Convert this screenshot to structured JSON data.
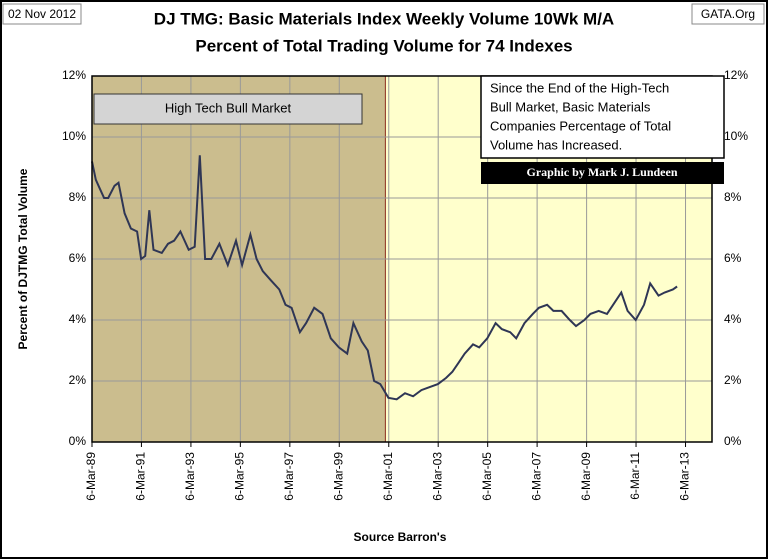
{
  "chart_data": {
    "type": "line",
    "header_left": "02 Nov 2012",
    "header_right": "GATA.Org",
    "title": "DJ TMG: Basic Materials Index Weekly Volume 10Wk M/A",
    "subtitle": "Percent of Total Trading Volume for 74 Indexes",
    "y_label": "Percent of DJTMG Total Volume",
    "x_label": "Source Barron's",
    "notes": [
      "Since the End of the High-Tech",
      "Bull Market, Basic Materials",
      "Companies Percentage of Total",
      "Volume has Increased."
    ],
    "credit": "Graphic by Mark J. Lundeen",
    "shade": {
      "from": "1989-03-06",
      "to": "2001-01-15",
      "label": "High Tech Bull Market",
      "color": "#cbbd8e"
    },
    "background": "#ffffcc",
    "grid": true,
    "xlim": [
      "1989-03-06",
      "2014-04-01"
    ],
    "xticks": [
      {
        "value": "1989-03-06",
        "label": "6-Mar-89"
      },
      {
        "value": "1991-03-06",
        "label": "6-Mar-91"
      },
      {
        "value": "1993-03-06",
        "label": "6-Mar-93"
      },
      {
        "value": "1995-03-06",
        "label": "6-Mar-95"
      },
      {
        "value": "1997-03-06",
        "label": "6-Mar-97"
      },
      {
        "value": "1999-03-06",
        "label": "6-Mar-99"
      },
      {
        "value": "2001-03-06",
        "label": "6-Mar-01"
      },
      {
        "value": "2003-03-06",
        "label": "6-Mar-03"
      },
      {
        "value": "2005-03-06",
        "label": "6-Mar-05"
      },
      {
        "value": "2007-03-06",
        "label": "6-Mar-07"
      },
      {
        "value": "2009-03-06",
        "label": "6-Mar-09"
      },
      {
        "value": "2011-03-06",
        "label": "6-Mar-11"
      },
      {
        "value": "2013-03-06",
        "label": "6-Mar-13"
      }
    ],
    "ylim": [
      0,
      12
    ],
    "yticks": [
      {
        "value": 0,
        "label": "0%"
      },
      {
        "value": 2,
        "label": "2%"
      },
      {
        "value": 4,
        "label": "4%"
      },
      {
        "value": 6,
        "label": "6%"
      },
      {
        "value": 8,
        "label": "8%"
      },
      {
        "value": 10,
        "label": "10%"
      },
      {
        "value": 12,
        "label": "12%"
      }
    ],
    "x": [
      "1989-03-06",
      "1989-05-01",
      "1989-07-01",
      "1989-09-01",
      "1989-11-01",
      "1990-02-01",
      "1990-04-01",
      "1990-07-01",
      "1990-10-01",
      "1991-01-01",
      "1991-03-01",
      "1991-05-01",
      "1991-07-01",
      "1991-09-01",
      "1992-01-01",
      "1992-04-01",
      "1992-07-01",
      "1992-10-01",
      "1993-02-01",
      "1993-05-01",
      "1993-07-15",
      "1993-10-01",
      "1994-01-01",
      "1994-05-01",
      "1994-09-01",
      "1995-01-01",
      "1995-04-01",
      "1995-08-01",
      "1995-11-01",
      "1996-02-01",
      "1996-06-01",
      "1996-10-01",
      "1997-01-01",
      "1997-04-01",
      "1997-08-01",
      "1997-11-01",
      "1998-03-01",
      "1998-07-01",
      "1998-11-01",
      "1999-03-01",
      "1999-07-01",
      "1999-10-01",
      "2000-02-01",
      "2000-05-01",
      "2000-08-01",
      "2000-11-01",
      "2001-03-01",
      "2001-07-01",
      "2001-11-01",
      "2002-03-01",
      "2002-07-01",
      "2002-11-01",
      "2003-03-01",
      "2003-07-01",
      "2003-10-01",
      "2004-01-01",
      "2004-04-01",
      "2004-08-01",
      "2004-11-01",
      "2005-03-01",
      "2005-07-01",
      "2005-10-01",
      "2006-02-01",
      "2006-05-01",
      "2006-09-01",
      "2007-01-01",
      "2007-04-01",
      "2007-08-01",
      "2007-11-01",
      "2008-03-01",
      "2008-07-01",
      "2008-10-01",
      "2009-02-01",
      "2009-05-01",
      "2009-09-01",
      "2010-01-01",
      "2010-04-01",
      "2010-08-01",
      "2010-11-01",
      "2011-03-01",
      "2011-07-01",
      "2011-10-01",
      "2012-02-01",
      "2012-05-01",
      "2012-09-01",
      "2012-11-01"
    ],
    "series": [
      {
        "color": "#2f3655",
        "values": [
          9.2,
          8.6,
          8.3,
          8.0,
          8.0,
          8.4,
          8.5,
          7.5,
          7.0,
          6.9,
          6.0,
          6.1,
          7.6,
          6.3,
          6.2,
          6.5,
          6.6,
          6.9,
          6.3,
          6.4,
          9.4,
          6.0,
          6.0,
          6.5,
          5.8,
          6.6,
          5.8,
          6.8,
          6.0,
          5.6,
          5.3,
          5.0,
          4.5,
          4.4,
          3.6,
          3.9,
          4.4,
          4.2,
          3.4,
          3.1,
          2.9,
          3.9,
          3.3,
          3.0,
          2.0,
          1.9,
          1.45,
          1.4,
          1.6,
          1.5,
          1.7,
          1.8,
          1.9,
          2.1,
          2.3,
          2.6,
          2.9,
          3.2,
          3.1,
          3.4,
          3.9,
          3.7,
          3.6,
          3.4,
          3.9,
          4.2,
          4.4,
          4.5,
          4.3,
          4.3,
          4.0,
          3.8,
          4.0,
          4.2,
          4.3,
          4.2,
          4.5,
          4.9,
          4.3,
          4.0,
          4.5,
          5.2,
          4.8,
          4.9,
          5.0,
          5.1
        ]
      }
    ]
  }
}
